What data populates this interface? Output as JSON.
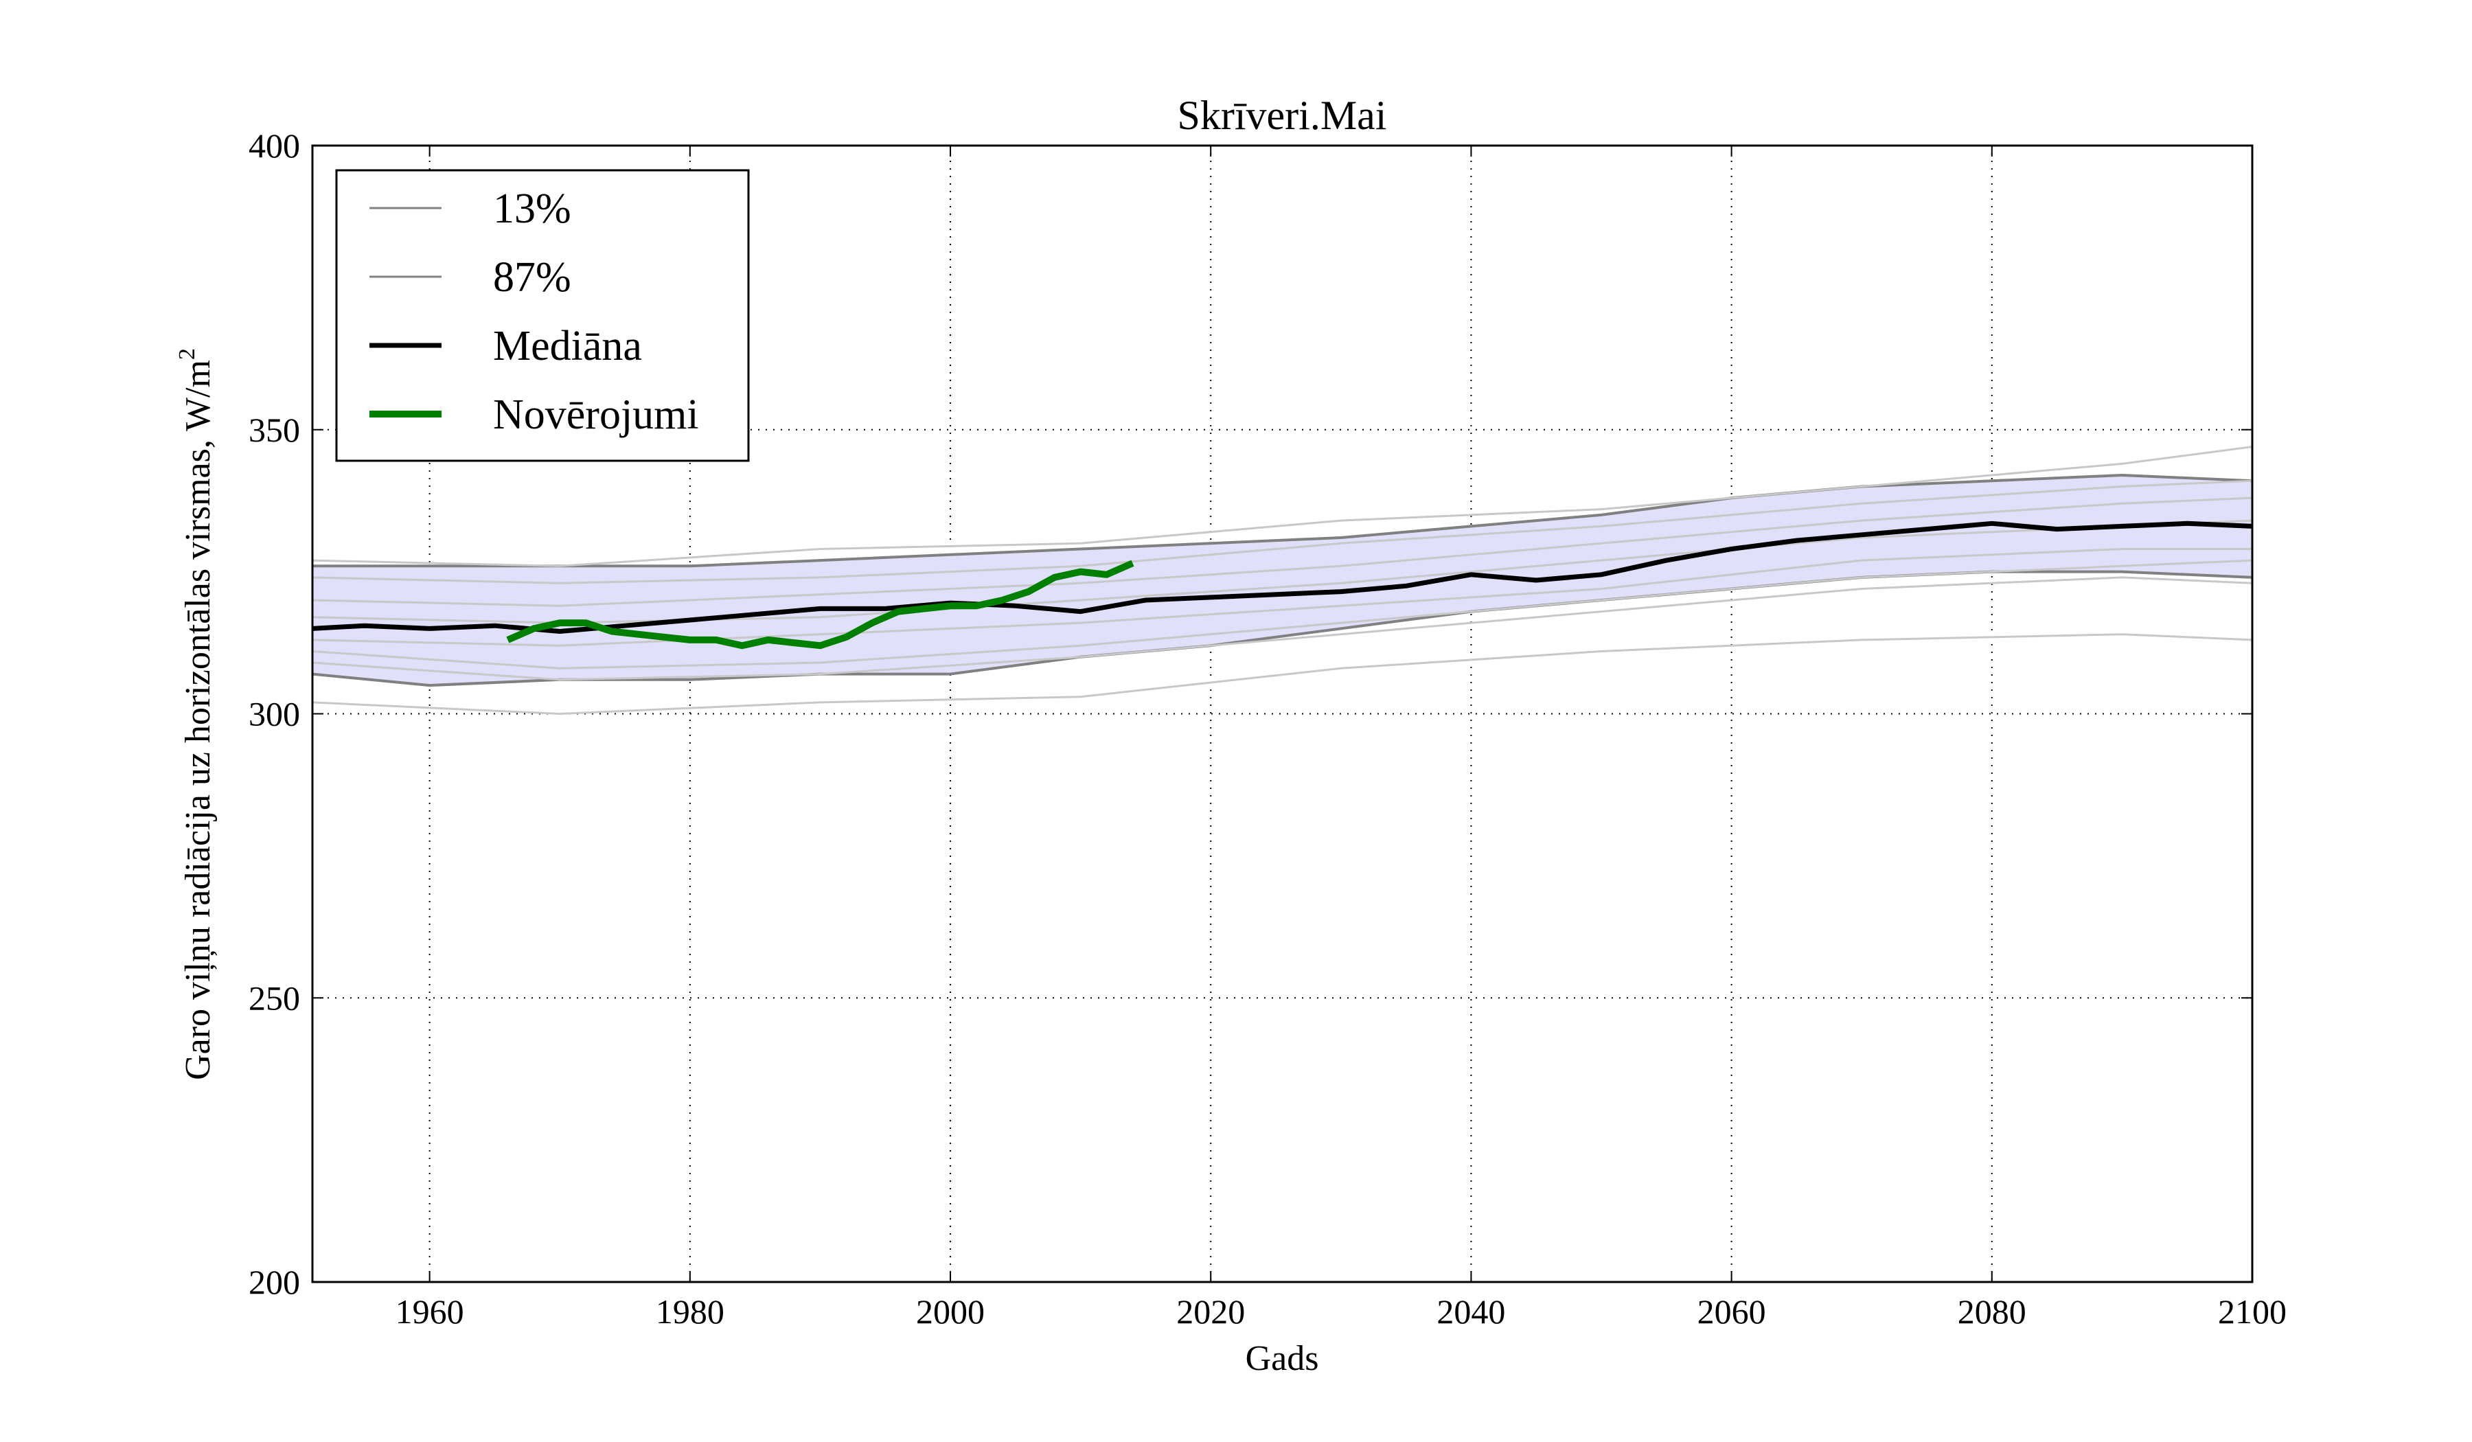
{
  "chart_data": {
    "type": "line",
    "title": "Skrīveri.Mai",
    "xlabel": "Gads",
    "ylabel": "Garo viļņu radiācija uz horizontālas virsmas, W/m",
    "ylabel_superscript": "2",
    "xlim": [
      1951,
      2100
    ],
    "ylim": [
      200,
      400
    ],
    "x_ticks": [
      1960,
      1980,
      2000,
      2020,
      2040,
      2060,
      2080,
      2100
    ],
    "y_ticks": [
      200,
      250,
      300,
      350,
      400
    ],
    "grid": true,
    "legend_position": "top-left",
    "band": {
      "lower_name": "13%",
      "upper_name": "87%",
      "color": "#e0e0fa",
      "edge_color": "#808080",
      "x": [
        1951,
        1960,
        1970,
        1980,
        1990,
        2000,
        2010,
        2020,
        2030,
        2040,
        2050,
        2060,
        2070,
        2080,
        2090,
        2100
      ],
      "lower": [
        307,
        305,
        306,
        306,
        307,
        307,
        310,
        312,
        315,
        318,
        320,
        322,
        324,
        325,
        325,
        324
      ],
      "upper": [
        326,
        326,
        326,
        326,
        327,
        328,
        329,
        330,
        331,
        333,
        335,
        338,
        340,
        341,
        342,
        341
      ]
    },
    "series": [
      {
        "name": "Mediāna",
        "color": "#000000",
        "x": [
          1951,
          1955,
          1960,
          1965,
          1970,
          1975,
          1980,
          1985,
          1990,
          1995,
          2000,
          2005,
          2010,
          2015,
          2020,
          2025,
          2030,
          2035,
          2040,
          2045,
          2050,
          2055,
          2060,
          2065,
          2070,
          2075,
          2080,
          2085,
          2090,
          2095,
          2100
        ],
        "y": [
          315,
          315.5,
          315,
          315.5,
          314.5,
          315.5,
          316.5,
          317.5,
          318.5,
          318.5,
          319.5,
          319,
          318,
          320,
          320.5,
          321,
          321.5,
          322.5,
          324.5,
          323.5,
          324.5,
          327,
          329,
          330.5,
          331.5,
          332.5,
          333.5,
          332.5,
          333,
          333.5,
          333
        ]
      },
      {
        "name": "Novērojumi",
        "color": "#008000",
        "x": [
          1966,
          1968,
          1970,
          1972,
          1974,
          1976,
          1978,
          1980,
          1982,
          1984,
          1986,
          1988,
          1990,
          1992,
          1994,
          1996,
          1998,
          2000,
          2002,
          2004,
          2006,
          2008,
          2010,
          2012,
          2014
        ],
        "y": [
          313,
          315,
          316,
          316,
          314.5,
          314,
          313.5,
          313,
          313,
          312,
          313,
          312.5,
          312,
          313.5,
          316,
          318,
          318.5,
          319,
          319,
          320,
          321.5,
          324,
          325,
          324.5,
          326.5
        ]
      }
    ],
    "ensemble_members": [
      {
        "x": [
          1951,
          1970,
          1990,
          2010,
          2030,
          2050,
          2070,
          2090,
          2100
        ],
        "y": [
          302,
          300,
          302,
          303,
          308,
          311,
          313,
          314,
          313
        ]
      },
      {
        "x": [
          1951,
          1970,
          1990,
          2010,
          2030,
          2050,
          2070,
          2090,
          2100
        ],
        "y": [
          311,
          308,
          309,
          312,
          316,
          320,
          324,
          326,
          327
        ]
      },
      {
        "x": [
          1951,
          1970,
          1990,
          2010,
          2030,
          2050,
          2070,
          2090,
          2100
        ],
        "y": [
          313,
          312,
          314,
          316,
          319,
          322,
          327,
          329,
          329
        ]
      },
      {
        "x": [
          1951,
          1970,
          1990,
          2010,
          2030,
          2050,
          2070,
          2090,
          2100
        ],
        "y": [
          317,
          316,
          317,
          320,
          323,
          327,
          331,
          333,
          334
        ]
      },
      {
        "x": [
          1951,
          1970,
          1990,
          2010,
          2030,
          2050,
          2070,
          2090,
          2100
        ],
        "y": [
          320,
          319,
          321,
          323,
          326,
          330,
          334,
          337,
          338
        ]
      },
      {
        "x": [
          1951,
          1970,
          1990,
          2010,
          2030,
          2050,
          2070,
          2090,
          2100
        ],
        "y": [
          324,
          323,
          324,
          326,
          330,
          333,
          337,
          340,
          341
        ]
      },
      {
        "x": [
          1951,
          1970,
          1990,
          2010,
          2030,
          2050,
          2070,
          2090,
          2100
        ],
        "y": [
          327,
          326,
          329,
          330,
          334,
          336,
          340,
          344,
          347
        ]
      },
      {
        "x": [
          1951,
          1970,
          1990,
          2010,
          2030,
          2050,
          2070,
          2090,
          2100
        ],
        "y": [
          309,
          306,
          307,
          310,
          314,
          318,
          322,
          324,
          323
        ]
      }
    ],
    "ensemble_color": "#c8c8c8"
  }
}
